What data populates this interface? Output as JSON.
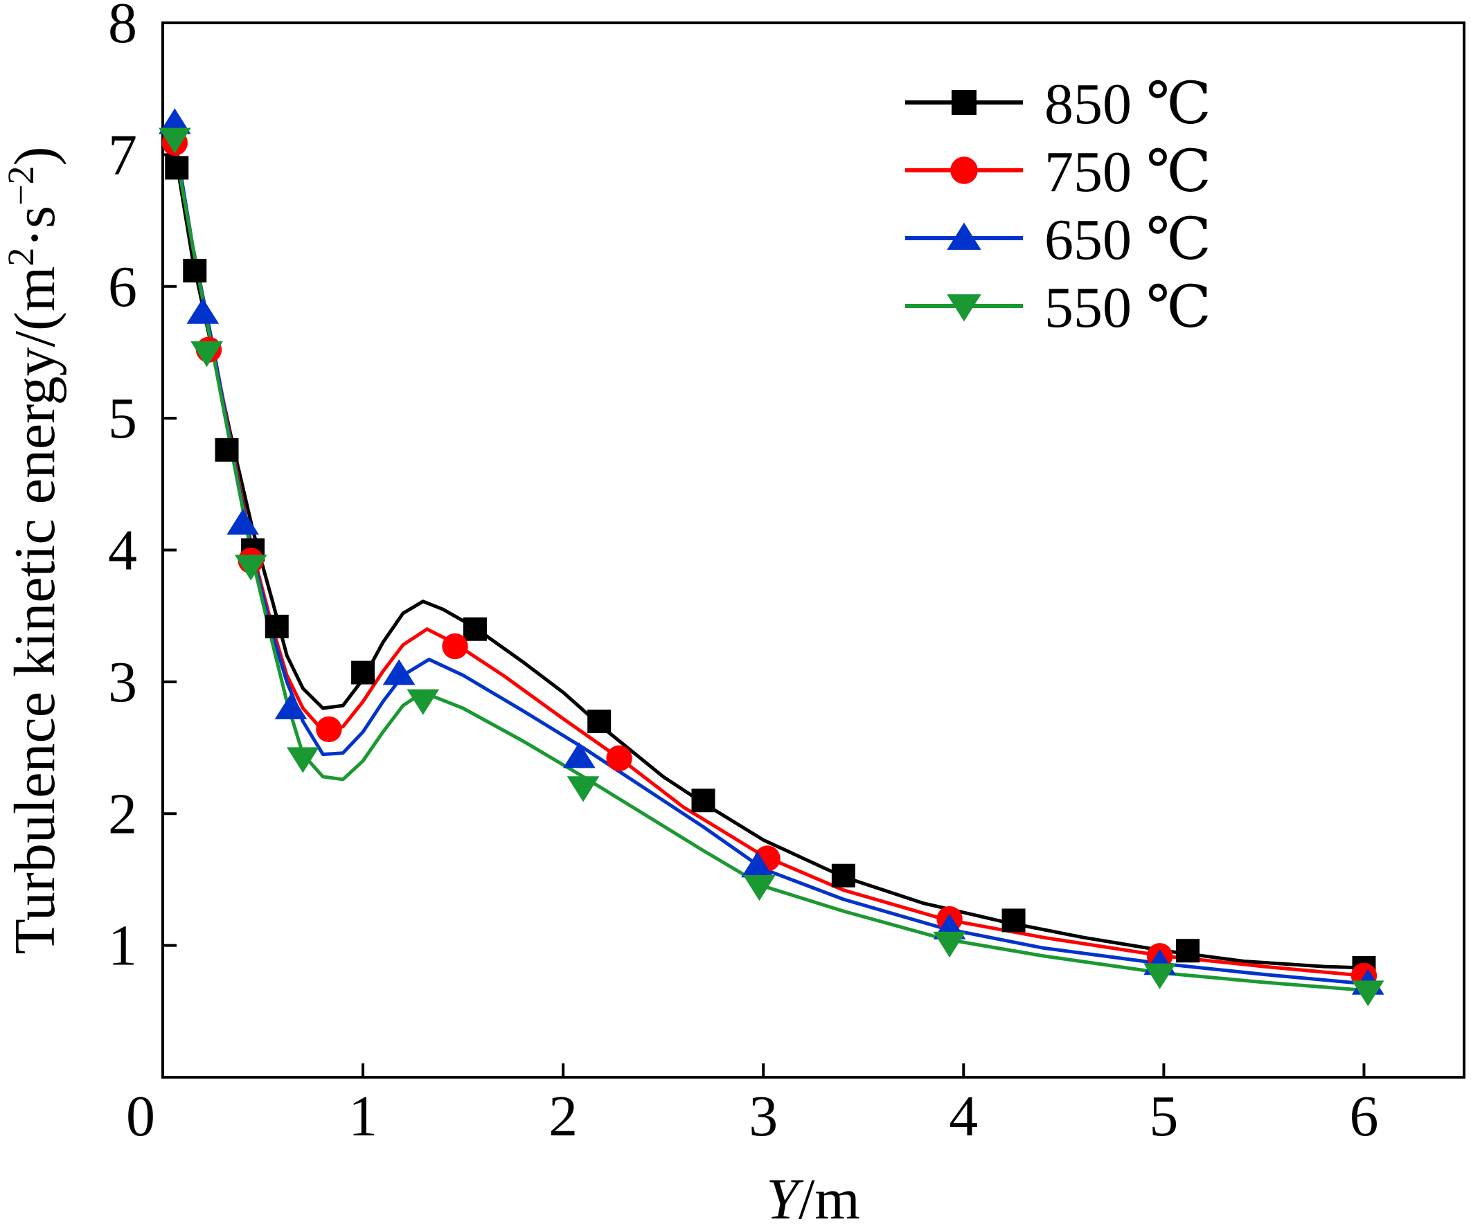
{
  "chart_data": {
    "type": "line",
    "title": "",
    "xlabel": {
      "var": "Y",
      "unit": "/m"
    },
    "ylabel": {
      "prefix": "Turbulence kinetic energy/(m",
      "sup1": "2",
      "mid": "·s",
      "sup2": "−2",
      "suffix": ")"
    },
    "xlim": [
      0,
      6.5
    ],
    "ylim": [
      0,
      8
    ],
    "xticks": [
      0,
      1,
      2,
      3,
      4,
      5,
      6
    ],
    "yticks": [
      1,
      2,
      3,
      4,
      5,
      6,
      7,
      8
    ],
    "xtick_labels": [
      "0",
      "1",
      "2",
      "3",
      "4",
      "5",
      "6"
    ],
    "ytick_labels": [
      "1",
      "2",
      "3",
      "4",
      "5",
      "6",
      "7",
      "8"
    ],
    "grid": false,
    "legend_position": "top-right",
    "series": [
      {
        "name": "850 ℃",
        "color": "#000000",
        "marker": "square",
        "line": [
          [
            0.05,
            7.12
          ],
          [
            0.15,
            6.2
          ],
          [
            0.25,
            5.5
          ],
          [
            0.35,
            4.8
          ],
          [
            0.45,
            4.15
          ],
          [
            0.55,
            3.6
          ],
          [
            0.62,
            3.2
          ],
          [
            0.7,
            2.95
          ],
          [
            0.8,
            2.8
          ],
          [
            0.9,
            2.82
          ],
          [
            1.0,
            3.02
          ],
          [
            1.1,
            3.3
          ],
          [
            1.2,
            3.52
          ],
          [
            1.3,
            3.61
          ],
          [
            1.4,
            3.55
          ],
          [
            1.55,
            3.42
          ],
          [
            1.8,
            3.15
          ],
          [
            2.0,
            2.92
          ],
          [
            2.2,
            2.65
          ],
          [
            2.5,
            2.28
          ],
          [
            2.7,
            2.08
          ],
          [
            3.0,
            1.8
          ],
          [
            3.4,
            1.52
          ],
          [
            3.8,
            1.32
          ],
          [
            4.2,
            1.18
          ],
          [
            4.6,
            1.06
          ],
          [
            5.0,
            0.96
          ],
          [
            5.4,
            0.88
          ],
          [
            5.8,
            0.84
          ],
          [
            6.0,
            0.83
          ]
        ],
        "markers": [
          [
            0.07,
            6.9
          ],
          [
            0.16,
            6.12
          ],
          [
            0.32,
            4.76
          ],
          [
            0.45,
            4.0
          ],
          [
            0.57,
            3.42
          ],
          [
            1.0,
            3.07
          ],
          [
            1.56,
            3.4
          ],
          [
            2.18,
            2.7
          ],
          [
            2.7,
            2.1
          ],
          [
            3.4,
            1.53
          ],
          [
            4.25,
            1.19
          ],
          [
            5.12,
            0.96
          ],
          [
            6.0,
            0.83
          ]
        ]
      },
      {
        "name": "750 ℃",
        "color": "#ff0000",
        "marker": "circle",
        "line": [
          [
            0.05,
            7.2
          ],
          [
            0.15,
            6.3
          ],
          [
            0.25,
            5.55
          ],
          [
            0.35,
            4.75
          ],
          [
            0.45,
            3.98
          ],
          [
            0.55,
            3.4
          ],
          [
            0.62,
            3.05
          ],
          [
            0.7,
            2.8
          ],
          [
            0.8,
            2.63
          ],
          [
            0.9,
            2.66
          ],
          [
            1.0,
            2.85
          ],
          [
            1.1,
            3.08
          ],
          [
            1.2,
            3.28
          ],
          [
            1.32,
            3.4
          ],
          [
            1.45,
            3.3
          ],
          [
            1.7,
            3.05
          ],
          [
            2.0,
            2.72
          ],
          [
            2.3,
            2.4
          ],
          [
            2.6,
            2.05
          ],
          [
            3.0,
            1.68
          ],
          [
            3.4,
            1.42
          ],
          [
            3.9,
            1.2
          ],
          [
            4.4,
            1.06
          ],
          [
            5.0,
            0.92
          ],
          [
            5.5,
            0.84
          ],
          [
            6.0,
            0.77
          ]
        ],
        "markers": [
          [
            0.06,
            7.09
          ],
          [
            0.23,
            5.52
          ],
          [
            0.44,
            3.92
          ],
          [
            0.83,
            2.64
          ],
          [
            1.46,
            3.27
          ],
          [
            2.28,
            2.42
          ],
          [
            3.02,
            1.66
          ],
          [
            3.93,
            1.2
          ],
          [
            4.98,
            0.92
          ],
          [
            6.0,
            0.77
          ]
        ]
      },
      {
        "name": "650 ℃",
        "color": "#0033cc",
        "marker": "triangle-up",
        "line": [
          [
            0.05,
            7.22
          ],
          [
            0.15,
            6.3
          ],
          [
            0.25,
            5.55
          ],
          [
            0.35,
            4.72
          ],
          [
            0.45,
            3.95
          ],
          [
            0.55,
            3.35
          ],
          [
            0.62,
            3.0
          ],
          [
            0.7,
            2.7
          ],
          [
            0.8,
            2.45
          ],
          [
            0.9,
            2.46
          ],
          [
            1.0,
            2.62
          ],
          [
            1.1,
            2.85
          ],
          [
            1.2,
            3.05
          ],
          [
            1.33,
            3.17
          ],
          [
            1.5,
            3.05
          ],
          [
            1.8,
            2.78
          ],
          [
            2.1,
            2.5
          ],
          [
            2.4,
            2.2
          ],
          [
            2.7,
            1.9
          ],
          [
            3.0,
            1.58
          ],
          [
            3.4,
            1.35
          ],
          [
            3.9,
            1.13
          ],
          [
            4.4,
            0.98
          ],
          [
            5.0,
            0.86
          ],
          [
            5.5,
            0.78
          ],
          [
            6.0,
            0.71
          ]
        ],
        "markers": [
          [
            0.06,
            7.24
          ],
          [
            0.2,
            5.8
          ],
          [
            0.4,
            4.2
          ],
          [
            0.64,
            2.8
          ],
          [
            1.18,
            3.06
          ],
          [
            2.08,
            2.43
          ],
          [
            2.97,
            1.6
          ],
          [
            3.93,
            1.13
          ],
          [
            4.98,
            0.86
          ],
          [
            6.02,
            0.71
          ]
        ]
      },
      {
        "name": "550 ℃",
        "color": "#1a9933",
        "marker": "triangle-down",
        "line": [
          [
            0.05,
            7.15
          ],
          [
            0.15,
            6.3
          ],
          [
            0.25,
            5.5
          ],
          [
            0.35,
            4.7
          ],
          [
            0.45,
            3.92
          ],
          [
            0.55,
            3.28
          ],
          [
            0.62,
            2.85
          ],
          [
            0.7,
            2.45
          ],
          [
            0.8,
            2.28
          ],
          [
            0.9,
            2.26
          ],
          [
            1.0,
            2.4
          ],
          [
            1.1,
            2.62
          ],
          [
            1.2,
            2.82
          ],
          [
            1.3,
            2.92
          ],
          [
            1.5,
            2.8
          ],
          [
            1.8,
            2.55
          ],
          [
            2.1,
            2.28
          ],
          [
            2.4,
            2.0
          ],
          [
            2.7,
            1.72
          ],
          [
            3.0,
            1.45
          ],
          [
            3.4,
            1.26
          ],
          [
            3.9,
            1.05
          ],
          [
            4.4,
            0.92
          ],
          [
            5.0,
            0.79
          ],
          [
            5.5,
            0.72
          ],
          [
            6.0,
            0.66
          ]
        ],
        "markers": [
          [
            0.06,
            7.12
          ],
          [
            0.22,
            5.5
          ],
          [
            0.44,
            3.88
          ],
          [
            0.7,
            2.42
          ],
          [
            1.3,
            2.86
          ],
          [
            2.1,
            2.2
          ],
          [
            2.98,
            1.45
          ],
          [
            3.93,
            1.02
          ],
          [
            4.98,
            0.78
          ],
          [
            6.02,
            0.65
          ]
        ]
      }
    ]
  }
}
